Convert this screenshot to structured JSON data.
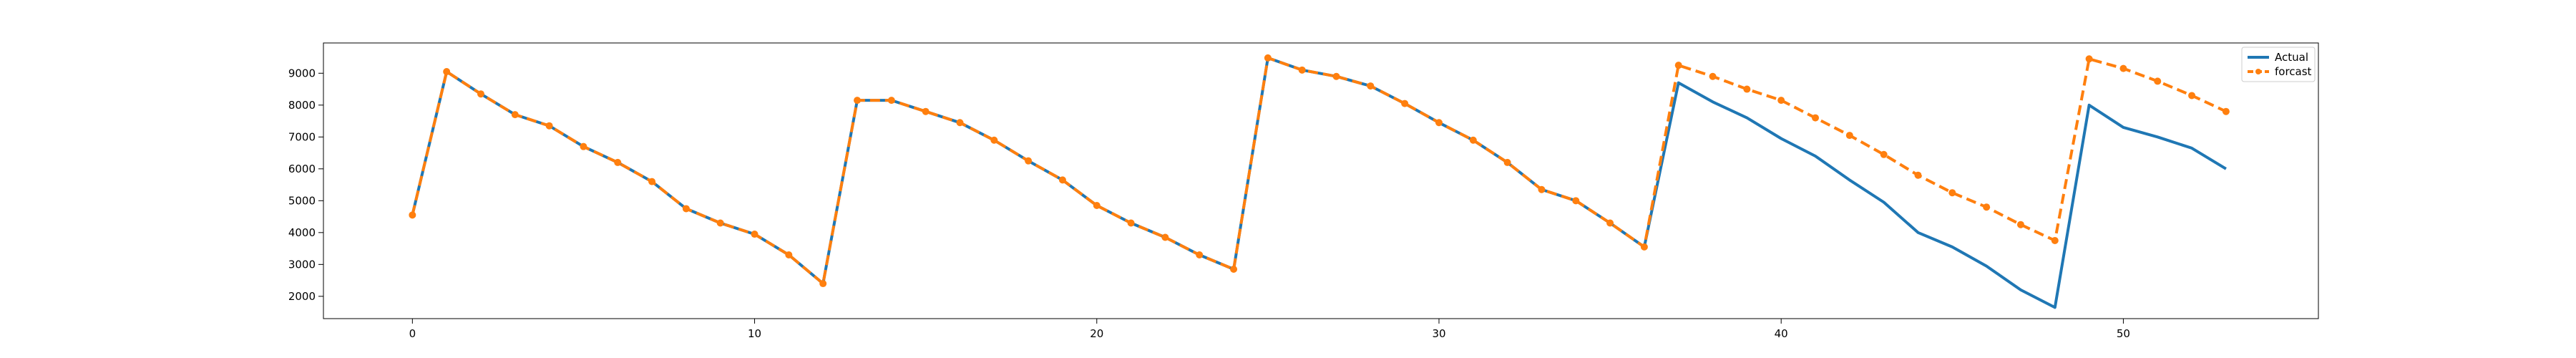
{
  "chart_data": {
    "type": "line",
    "title": "",
    "xlabel": "",
    "ylabel": "",
    "xlim": [
      -2.6,
      55.7
    ],
    "ylim": [
      1300,
      9950
    ],
    "xticks": [
      0,
      10,
      20,
      30,
      40,
      50
    ],
    "yticks": [
      2000,
      3000,
      4000,
      5000,
      6000,
      7000,
      8000,
      9000
    ],
    "grid": false,
    "legend_position": "top-right",
    "series": [
      {
        "name": "Actual",
        "color": "#1f77b4",
        "style": "solid",
        "x": [
          0,
          1,
          2,
          3,
          4,
          5,
          6,
          7,
          8,
          9,
          10,
          11,
          12,
          13,
          14,
          15,
          16,
          17,
          18,
          19,
          20,
          21,
          22,
          23,
          24,
          25,
          26,
          27,
          28,
          29,
          30,
          31,
          32,
          33,
          34,
          35,
          36,
          37,
          38,
          39,
          40,
          41,
          42,
          43,
          44,
          45,
          46,
          47,
          48,
          49,
          50,
          51,
          52,
          53
        ],
        "values": [
          4550,
          9050,
          8350,
          7700,
          7350,
          6700,
          6200,
          5600,
          4750,
          4300,
          3950,
          3300,
          2400,
          8150,
          8150,
          7800,
          7450,
          6900,
          6250,
          5650,
          4850,
          4300,
          3850,
          3300,
          2850,
          9480,
          9100,
          8900,
          8600,
          8050,
          7450,
          6900,
          6200,
          5350,
          5000,
          4300,
          3550,
          8700,
          8100,
          7600,
          6950,
          6400,
          5650,
          4950,
          4000,
          3550,
          2950,
          2200,
          1650,
          8000,
          7300,
          7000,
          6650,
          6000
        ]
      },
      {
        "name": "forcast",
        "color": "#ff7f0e",
        "style": "dashed-marker",
        "x": [
          0,
          1,
          2,
          3,
          4,
          5,
          6,
          7,
          8,
          9,
          10,
          11,
          12,
          13,
          14,
          15,
          16,
          17,
          18,
          19,
          20,
          21,
          22,
          23,
          24,
          25,
          26,
          27,
          28,
          29,
          30,
          31,
          32,
          33,
          34,
          35,
          36,
          37,
          38,
          39,
          40,
          41,
          42,
          43,
          44,
          45,
          46,
          47,
          48,
          49,
          50,
          51,
          52,
          53
        ],
        "values": [
          4550,
          9050,
          8350,
          7700,
          7350,
          6700,
          6200,
          5600,
          4750,
          4300,
          3950,
          3300,
          2400,
          8150,
          8150,
          7800,
          7450,
          6900,
          6250,
          5650,
          4850,
          4300,
          3850,
          3300,
          2850,
          9480,
          9100,
          8900,
          8600,
          8050,
          7450,
          6900,
          6200,
          5350,
          5000,
          4300,
          3550,
          9250,
          8900,
          8500,
          8150,
          7600,
          7050,
          6450,
          5800,
          5250,
          4800,
          4250,
          3750,
          9450,
          9150,
          8750,
          8300,
          7800
        ]
      }
    ]
  }
}
